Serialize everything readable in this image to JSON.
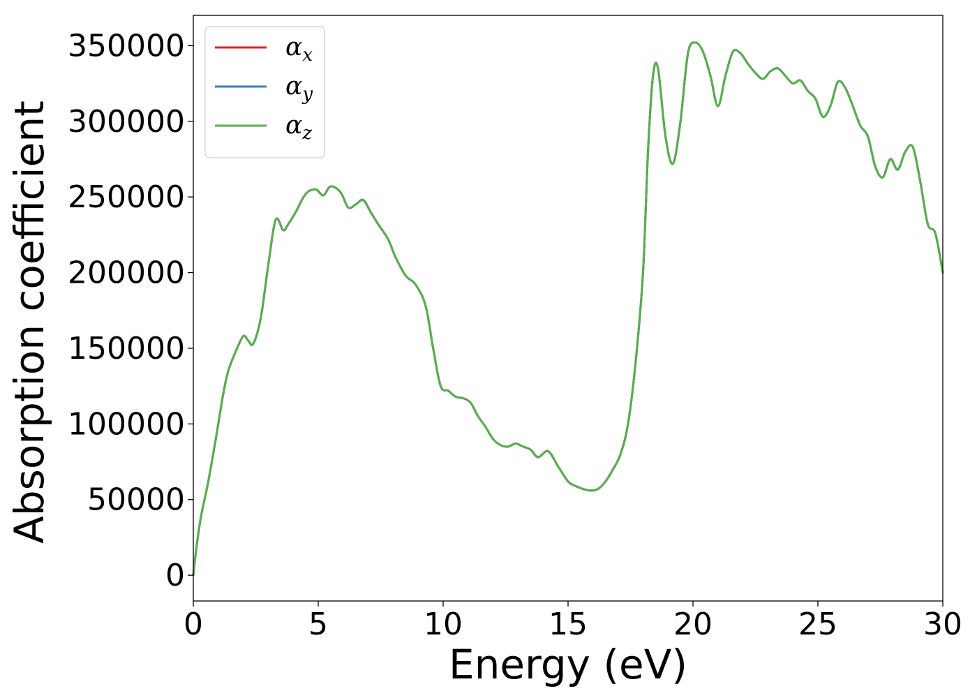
{
  "chart_data": {
    "type": "line",
    "xlabel": "Energy (eV)",
    "ylabel": "Absorption coefficient",
    "xlim": [
      0,
      30
    ],
    "ylim": [
      -17000,
      370000
    ],
    "xticks": [
      0,
      5,
      10,
      15,
      20,
      25,
      30
    ],
    "xtick_labels": [
      "0",
      "5",
      "10",
      "15",
      "20",
      "25",
      "30"
    ],
    "yticks": [
      0,
      50000,
      100000,
      150000,
      200000,
      250000,
      300000,
      350000
    ],
    "ytick_labels": [
      "0",
      "50000",
      "100000",
      "150000",
      "200000",
      "250000",
      "300000",
      "350000"
    ],
    "grid": false,
    "legend_position": "top-left",
    "x": [
      0,
      0.1,
      0.3,
      0.6,
      0.9,
      1.2,
      1.4,
      1.7,
      2.0,
      2.2,
      2.4,
      2.7,
      3.0,
      3.3,
      3.6,
      3.8,
      4.1,
      4.5,
      4.9,
      5.2,
      5.5,
      5.9,
      6.2,
      6.5,
      6.8,
      7.1,
      7.4,
      7.8,
      8.1,
      8.5,
      8.9,
      9.3,
      9.6,
      9.9,
      10.2,
      10.5,
      10.8,
      11.1,
      11.4,
      11.7,
      12.0,
      12.3,
      12.6,
      12.9,
      13.2,
      13.5,
      13.8,
      14.2,
      14.6,
      15.0,
      15.3,
      15.6,
      15.9,
      16.2,
      16.5,
      16.8,
      17.1,
      17.4,
      17.7,
      18.0,
      18.2,
      18.4,
      18.6,
      18.9,
      19.2,
      19.5,
      19.8,
      20.1,
      20.4,
      20.7,
      21.0,
      21.3,
      21.6,
      21.9,
      22.2,
      22.5,
      22.8,
      23.1,
      23.4,
      23.7,
      24.0,
      24.3,
      24.6,
      24.9,
      25.2,
      25.5,
      25.8,
      26.1,
      26.4,
      26.7,
      27.0,
      27.3,
      27.6,
      27.9,
      28.2,
      28.5,
      28.8,
      29.1,
      29.4,
      29.7,
      30.0
    ],
    "series": [
      {
        "name": "α_x",
        "color": "#d62728",
        "values": [
          0,
          15000,
          38000,
          62000,
          90000,
          120000,
          135000,
          148000,
          158000,
          155000,
          153000,
          170000,
          205000,
          235000,
          228000,
          232000,
          240000,
          252000,
          255000,
          251000,
          257000,
          253000,
          243000,
          245000,
          248000,
          240000,
          232000,
          222000,
          210000,
          198000,
          192000,
          178000,
          150000,
          125000,
          122000,
          118000,
          117000,
          114000,
          105000,
          98000,
          90000,
          86000,
          85000,
          87000,
          85000,
          83000,
          78000,
          82000,
          72000,
          62000,
          59000,
          57000,
          56000,
          57000,
          62000,
          70000,
          80000,
          100000,
          140000,
          200000,
          280000,
          330000,
          335000,
          290000,
          272000,
          300000,
          345000,
          352000,
          346000,
          330000,
          310000,
          330000,
          346000,
          345000,
          338000,
          332000,
          328000,
          333000,
          335000,
          330000,
          325000,
          327000,
          320000,
          315000,
          303000,
          310000,
          326000,
          322000,
          310000,
          297000,
          290000,
          270000,
          263000,
          275000,
          268000,
          280000,
          283000,
          260000,
          232000,
          226000,
          200000
        ]
      },
      {
        "name": "α_y",
        "color": "#3b7db3",
        "values": [
          0,
          15000,
          38000,
          62000,
          90000,
          120000,
          135000,
          148000,
          158000,
          155000,
          153000,
          170000,
          205000,
          235000,
          228000,
          232000,
          240000,
          252000,
          255000,
          251000,
          257000,
          253000,
          243000,
          245000,
          248000,
          240000,
          232000,
          222000,
          210000,
          198000,
          192000,
          178000,
          150000,
          125000,
          122000,
          118000,
          117000,
          114000,
          105000,
          98000,
          90000,
          86000,
          85000,
          87000,
          85000,
          83000,
          78000,
          82000,
          72000,
          62000,
          59000,
          57000,
          56000,
          57000,
          62000,
          70000,
          80000,
          100000,
          140000,
          200000,
          280000,
          330000,
          335000,
          290000,
          272000,
          300000,
          345000,
          352000,
          346000,
          330000,
          310000,
          330000,
          346000,
          345000,
          338000,
          332000,
          328000,
          333000,
          335000,
          330000,
          325000,
          327000,
          320000,
          315000,
          303000,
          310000,
          326000,
          322000,
          310000,
          297000,
          290000,
          270000,
          263000,
          275000,
          268000,
          280000,
          283000,
          260000,
          232000,
          226000,
          200000
        ]
      },
      {
        "name": "α_z",
        "color": "#5aae4f",
        "values": [
          0,
          15000,
          38000,
          62000,
          90000,
          120000,
          135000,
          148000,
          158000,
          155000,
          153000,
          170000,
          205000,
          235000,
          228000,
          232000,
          240000,
          252000,
          255000,
          251000,
          257000,
          253000,
          243000,
          245000,
          248000,
          240000,
          232000,
          222000,
          210000,
          198000,
          192000,
          178000,
          150000,
          125000,
          122000,
          118000,
          117000,
          114000,
          105000,
          98000,
          90000,
          86000,
          85000,
          87000,
          85000,
          83000,
          78000,
          82000,
          72000,
          62000,
          59000,
          57000,
          56000,
          57000,
          62000,
          70000,
          80000,
          100000,
          140000,
          200000,
          280000,
          330000,
          335000,
          290000,
          272000,
          300000,
          345000,
          352000,
          346000,
          330000,
          310000,
          330000,
          346000,
          345000,
          338000,
          332000,
          328000,
          333000,
          335000,
          330000,
          325000,
          327000,
          320000,
          315000,
          303000,
          310000,
          326000,
          322000,
          310000,
          297000,
          290000,
          270000,
          263000,
          275000,
          268000,
          280000,
          283000,
          260000,
          232000,
          226000,
          200000
        ]
      }
    ],
    "legend": [
      {
        "symbol": "α",
        "sub": "x"
      },
      {
        "symbol": "α",
        "sub": "y"
      },
      {
        "symbol": "α",
        "sub": "z"
      }
    ]
  }
}
